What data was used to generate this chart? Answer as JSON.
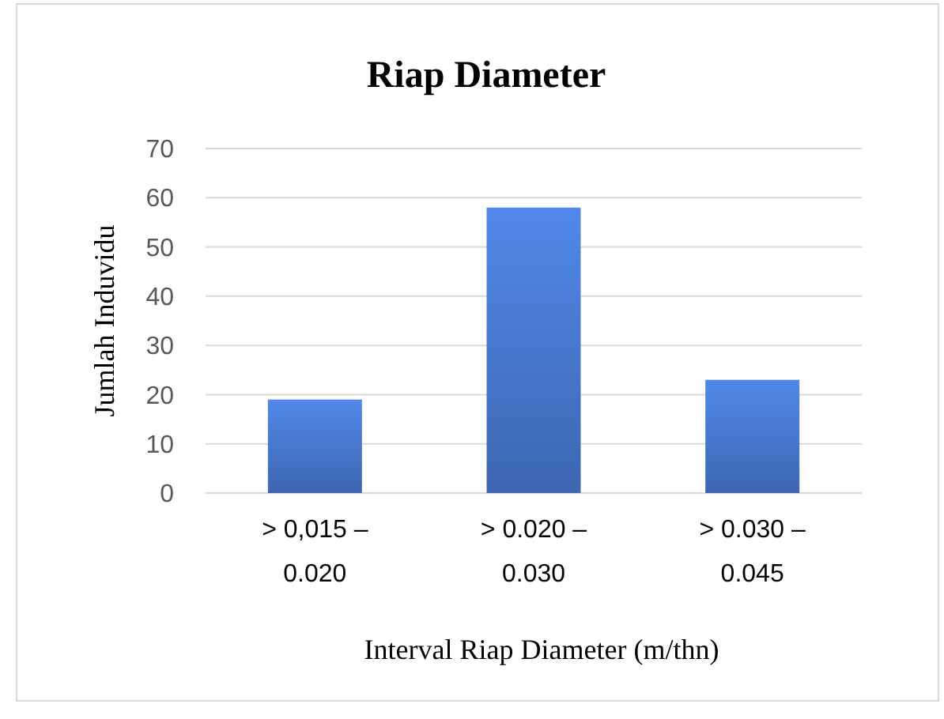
{
  "chart_data": {
    "type": "bar",
    "title": "Riap Diameter",
    "xlabel": "Interval Riap Diameter (m/thn)",
    "ylabel": "Jumlah Induvidu",
    "categories": [
      "> 0,015 – 0.020",
      "> 0.020 – 0.030",
      "> 0.030 – 0.045"
    ],
    "values": [
      19,
      58,
      23
    ],
    "color": "#4472c4",
    "ylim": [
      0,
      70
    ],
    "yticks": [
      0,
      10,
      20,
      30,
      40,
      50,
      60,
      70
    ],
    "grid": "y"
  }
}
